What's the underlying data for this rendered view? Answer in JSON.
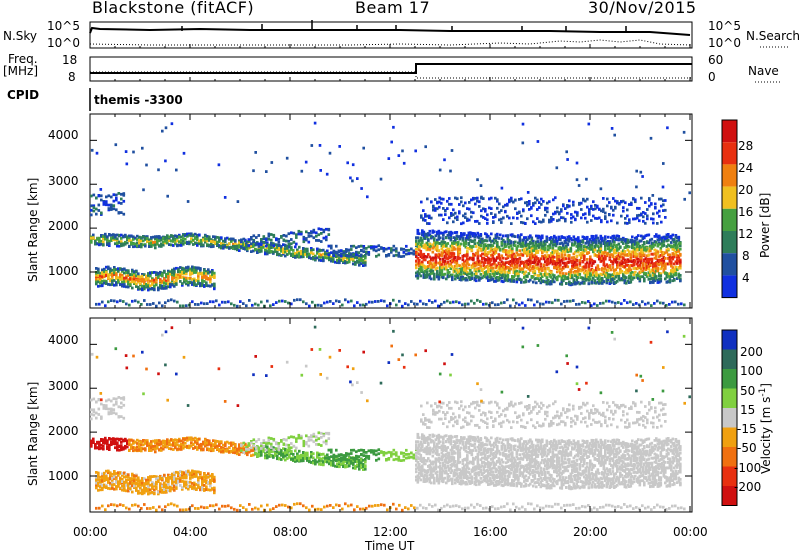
{
  "header": {
    "title": "Blackstone (fitACF)",
    "beam": "Beam 17",
    "date": "30/Nov/2015"
  },
  "panels": {
    "nsky": {
      "label": "N.Sky",
      "ticks": [
        "10^5",
        "10^0"
      ],
      "right_label": "N.Search",
      "right_ticks": [
        "10^5",
        "10^0"
      ]
    },
    "freq": {
      "label_top": "Freq.",
      "label_bot": "[MHz]",
      "ticks": [
        "18",
        "8"
      ],
      "right_label": "Nave",
      "right_ticks": [
        "60",
        "0"
      ]
    },
    "cpid": {
      "label": "CPID",
      "value": "themis -3300"
    }
  },
  "power": {
    "ylabel": "Slant Range [km]",
    "yticks": [
      "4000",
      "3000",
      "2000",
      "1000"
    ],
    "colorbar_label": "Power [dB]",
    "colorbar_ticks": [
      "28",
      "24",
      "20",
      "16",
      "12",
      "8",
      "4"
    ],
    "colors": [
      "#1030e0",
      "#2050a0",
      "#2e7d5a",
      "#46a040",
      "#f0c020",
      "#f08010",
      "#e83010",
      "#d01010"
    ]
  },
  "velocity": {
    "ylabel": "Slant Range [km]",
    "yticks": [
      "4000",
      "3000",
      "2000",
      "1000"
    ],
    "colorbar_label": "Velocity [m s",
    "colorbar_sup": "-1",
    "colorbar_label_end": "]",
    "colorbar_ticks": [
      "200",
      "100",
      "50",
      "15",
      "-15",
      "-50",
      "-100",
      "-200"
    ],
    "colors": [
      "#1030c0",
      "#2e6a5a",
      "#3c9a40",
      "#80d040",
      "#c8c8c8",
      "#f0a010",
      "#f07010",
      "#e83010",
      "#d01010"
    ]
  },
  "xaxis": {
    "label": "Time UT",
    "ticks": [
      "00:00",
      "04:00",
      "08:00",
      "12:00",
      "16:00",
      "20:00",
      "00:00"
    ]
  },
  "chart_data": {
    "type": "heatmap",
    "title": "Blackstone (fitACF)",
    "subtitle": "Beam 17",
    "date": "30/Nov/2015",
    "xlabel": "Time UT",
    "ylabel": "Slant Range [km]",
    "xlim_hours": [
      0,
      24
    ],
    "ylim_km": [
      180,
      4600
    ],
    "power_colorbar_ticks_db": [
      28,
      24,
      20,
      16,
      12,
      8,
      4
    ],
    "velocity_colorbar_ticks_ms": [
      200,
      100,
      50,
      15,
      -15,
      -50,
      -100,
      -200
    ],
    "freq_range_mhz": [
      8,
      18
    ],
    "nave_range": [
      0,
      60
    ]
  }
}
